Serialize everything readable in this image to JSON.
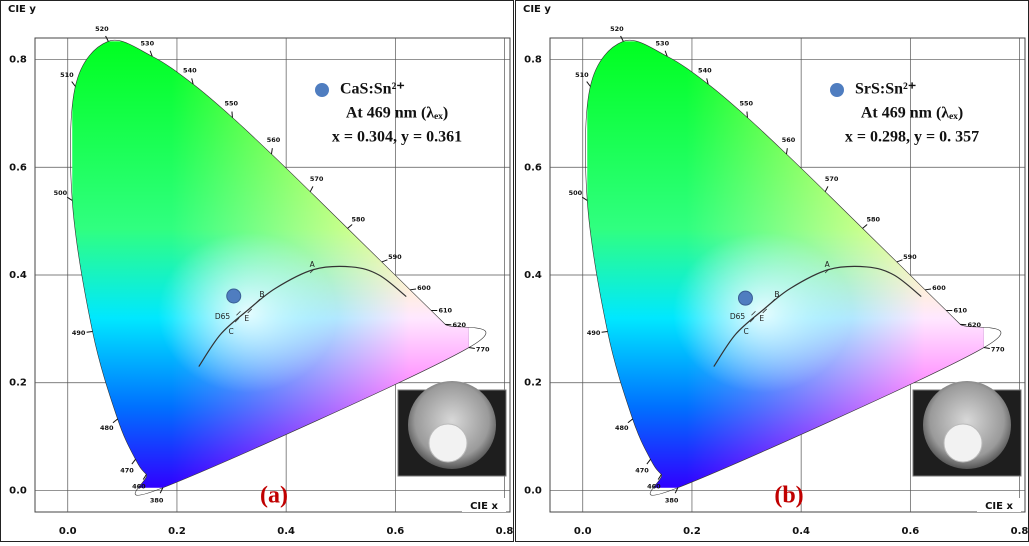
{
  "chart_data": [
    {
      "type": "scatter",
      "panel_label": "(a)",
      "xlabel": "CIE x",
      "ylabel": "CIE y",
      "xlim": [
        -0.06,
        0.81
      ],
      "ylim": [
        -0.04,
        0.84
      ],
      "xticks": [
        {
          "value": 0,
          "label": "0.0"
        },
        0.2,
        0.4,
        0.6,
        0.8
      ],
      "yticks": [
        {
          "value": 0,
          "label": "0.0"
        },
        0.2,
        0.4,
        0.6,
        0.8
      ],
      "grid": true,
      "series": [
        {
          "name": "CaS:Sn²⁺",
          "color": "#4f7dc0",
          "x": [
            0.304
          ],
          "values": [
            0.361
          ]
        }
      ],
      "annotations": [
        "At 469 nm (λₑₓ)",
        "x = 0.304, y = 0.361"
      ],
      "locus_labels": [
        {
          "text": "380",
          "x": 0.1741,
          "y": 0.005
        },
        {
          "text": "460",
          "x": 0.144,
          "y": 0.0297
        },
        {
          "text": "470",
          "x": 0.1241,
          "y": 0.0578
        },
        {
          "text": "480",
          "x": 0.0913,
          "y": 0.1327
        },
        {
          "text": "490",
          "x": 0.0454,
          "y": 0.295
        },
        {
          "text": "500",
          "x": 0.0082,
          "y": 0.5384
        },
        {
          "text": "510",
          "x": 0.0139,
          "y": 0.7502
        },
        {
          "text": "520",
          "x": 0.0743,
          "y": 0.8338
        },
        {
          "text": "530",
          "x": 0.1547,
          "y": 0.8059
        },
        {
          "text": "540",
          "x": 0.2296,
          "y": 0.7543
        },
        {
          "text": "550",
          "x": 0.3016,
          "y": 0.6923
        },
        {
          "text": "560",
          "x": 0.3731,
          "y": 0.6245
        },
        {
          "text": "570",
          "x": 0.4441,
          "y": 0.5547
        },
        {
          "text": "580",
          "x": 0.5125,
          "y": 0.4866
        },
        {
          "text": "590",
          "x": 0.5752,
          "y": 0.4242
        },
        {
          "text": "600",
          "x": 0.627,
          "y": 0.3725
        },
        {
          "text": "610",
          "x": 0.6658,
          "y": 0.334
        },
        {
          "text": "620",
          "x": 0.6915,
          "y": 0.3083
        },
        {
          "text": "770",
          "x": 0.7347,
          "y": 0.2653
        }
      ],
      "white_points": [
        {
          "label": "A",
          "x": 0.4476,
          "y": 0.4074
        },
        {
          "label": "B",
          "x": 0.3484,
          "y": 0.3516
        },
        {
          "label": "E",
          "x": 0.3333,
          "y": 0.3333
        },
        {
          "label": "D65",
          "x": 0.3127,
          "y": 0.329
        },
        {
          "label": "C",
          "x": 0.3101,
          "y": 0.3162
        }
      ],
      "planckian_locus": {
        "x": [
          0.24,
          0.28,
          0.33,
          0.38,
          0.45,
          0.52,
          0.57,
          0.62
        ],
        "y": [
          0.23,
          0.29,
          0.335,
          0.375,
          0.41,
          0.415,
          0.4,
          0.36
        ]
      }
    },
    {
      "type": "scatter",
      "panel_label": "(b)",
      "xlabel": "CIE x",
      "ylabel": "CIE y",
      "xlim": [
        -0.06,
        0.81
      ],
      "ylim": [
        -0.04,
        0.84
      ],
      "xticks": [
        {
          "value": 0,
          "label": "0.0"
        },
        0.2,
        0.4,
        0.6,
        0.8
      ],
      "yticks": [
        {
          "value": 0,
          "label": "0.0"
        },
        0.2,
        0.4,
        0.6,
        0.8
      ],
      "grid": true,
      "series": [
        {
          "name": "SrS:Sn²⁺",
          "color": "#4f7dc0",
          "x": [
            0.298
          ],
          "values": [
            0.357
          ]
        }
      ],
      "annotations": [
        "At 469 nm (λₑₓ)",
        "x = 0.298, y = 0. 357"
      ],
      "locus_labels": [
        {
          "text": "380",
          "x": 0.1741,
          "y": 0.005
        },
        {
          "text": "460",
          "x": 0.144,
          "y": 0.0297
        },
        {
          "text": "470",
          "x": 0.1241,
          "y": 0.0578
        },
        {
          "text": "480",
          "x": 0.0913,
          "y": 0.1327
        },
        {
          "text": "490",
          "x": 0.0454,
          "y": 0.295
        },
        {
          "text": "500",
          "x": 0.0082,
          "y": 0.5384
        },
        {
          "text": "510",
          "x": 0.0139,
          "y": 0.7502
        },
        {
          "text": "520",
          "x": 0.0743,
          "y": 0.8338
        },
        {
          "text": "530",
          "x": 0.1547,
          "y": 0.8059
        },
        {
          "text": "540",
          "x": 0.2296,
          "y": 0.7543
        },
        {
          "text": "550",
          "x": 0.3016,
          "y": 0.6923
        },
        {
          "text": "560",
          "x": 0.3731,
          "y": 0.6245
        },
        {
          "text": "570",
          "x": 0.4441,
          "y": 0.5547
        },
        {
          "text": "580",
          "x": 0.5125,
          "y": 0.4866
        },
        {
          "text": "590",
          "x": 0.5752,
          "y": 0.4242
        },
        {
          "text": "600",
          "x": 0.627,
          "y": 0.3725
        },
        {
          "text": "610",
          "x": 0.6658,
          "y": 0.334
        },
        {
          "text": "620",
          "x": 0.6915,
          "y": 0.3083
        },
        {
          "text": "770",
          "x": 0.7347,
          "y": 0.2653
        }
      ],
      "white_points": [
        {
          "label": "A",
          "x": 0.4476,
          "y": 0.4074
        },
        {
          "label": "B",
          "x": 0.3484,
          "y": 0.3516
        },
        {
          "label": "E",
          "x": 0.3333,
          "y": 0.3333
        },
        {
          "label": "D65",
          "x": 0.3127,
          "y": 0.329
        },
        {
          "label": "C",
          "x": 0.3101,
          "y": 0.3162
        }
      ],
      "planckian_locus": {
        "x": [
          0.24,
          0.28,
          0.33,
          0.38,
          0.45,
          0.52,
          0.57,
          0.62
        ],
        "y": [
          0.23,
          0.29,
          0.335,
          0.375,
          0.41,
          0.415,
          0.4,
          0.36
        ]
      }
    }
  ]
}
